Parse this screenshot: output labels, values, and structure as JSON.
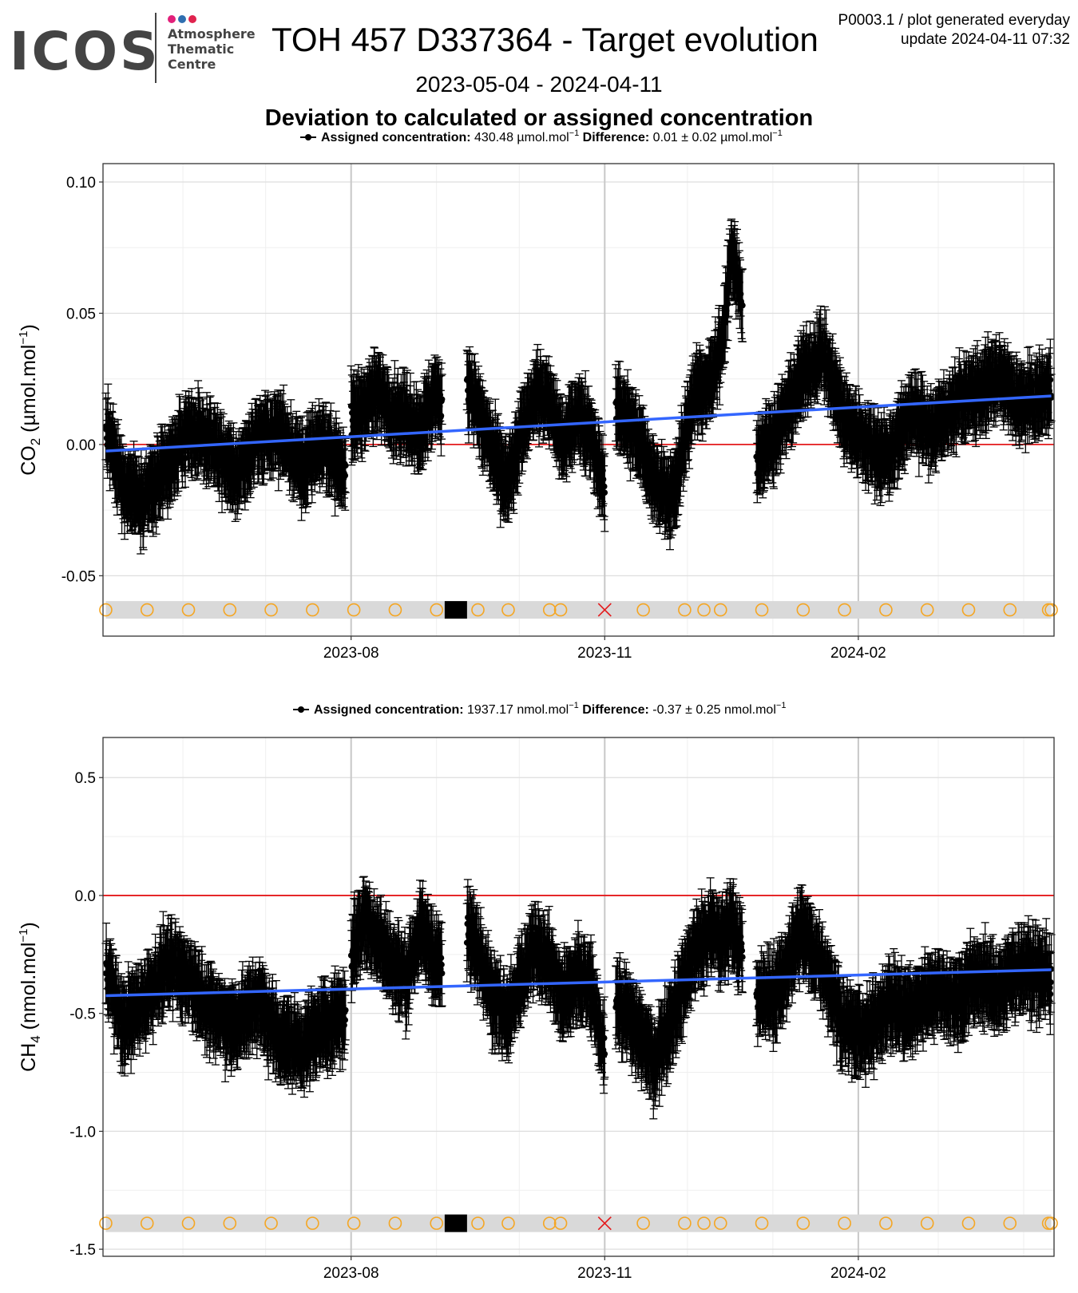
{
  "logo": {
    "text": "ICOS",
    "sub": [
      "Atmosphere",
      "Thematic",
      "Centre"
    ],
    "dot_colors": [
      "#e2207a",
      "#2f6fb0",
      "#e0234e"
    ]
  },
  "header": {
    "title": "TOH 457 D337364 - Target evolution",
    "meta_line1": "P0003.1 / plot generated everyday",
    "meta_line2": "update  2024-04-11 07:32",
    "date_range": "2023-05-04 - 2024-04-11",
    "subtitle": "Deviation to calculated or assigned concentration"
  },
  "colors": {
    "points": "#000000",
    "trend": "#3366ff",
    "zero_line": "#e41a1c",
    "event_circle": "#f5a623",
    "event_cross": "#e41a1c",
    "event_band": "#d9d9d9"
  },
  "chart_data": [
    {
      "type": "scatter",
      "ylabel_main": "CO",
      "ylabel_sub": "2",
      "ylabel_unit": " (µmol.mol",
      "ylabel_sup": "−1",
      "ylabel_close": ")",
      "legend": {
        "assigned_label": "Assigned concentration:",
        "assigned_value": "430.48 µmol.mol",
        "assigned_sup": "−1",
        "diff_label": "Difference:",
        "diff_value": "0.01 ± 0.02 µmol.mol",
        "diff_sup": "−1"
      },
      "xlim": [
        "2023-05-03",
        "2024-04-12"
      ],
      "ylim": [
        -0.073,
        0.107
      ],
      "yticks": [
        0.1,
        0.05,
        0.0,
        -0.05
      ],
      "ytick_labels": [
        "0.10",
        "0.05",
        "0.00",
        "-0.05"
      ],
      "xticks": [
        "2023-08-01",
        "2023-11-01",
        "2024-02-01"
      ],
      "xtick_labels": [
        "2023-08",
        "2023-11",
        "2024-02"
      ],
      "trend": {
        "x": [
          "2023-05-04",
          "2024-04-11"
        ],
        "y": [
          -0.0025,
          0.0185
        ]
      },
      "zero_line": 0.0,
      "event_y": -0.063,
      "error_bar": 0.012,
      "series_segments": [
        {
          "x": [
            "2023-05-04",
            "2023-05-10",
            "2023-05-18",
            "2023-05-26",
            "2023-06-03",
            "2023-06-12",
            "2023-06-20",
            "2023-06-28",
            "2023-07-06",
            "2023-07-14",
            "2023-07-22",
            "2023-07-30"
          ],
          "y": [
            0.005,
            -0.015,
            -0.02,
            -0.01,
            0.005,
            0.0,
            -0.012,
            0.002,
            0.005,
            -0.008,
            0.0,
            -0.01
          ]
        },
        {
          "x": [
            "2023-08-01",
            "2023-08-06",
            "2023-08-11",
            "2023-08-16",
            "2023-08-21",
            "2023-08-26",
            "2023-08-31",
            "2023-09-03"
          ],
          "y": [
            0.008,
            0.015,
            0.02,
            0.012,
            0.01,
            0.005,
            0.018,
            0.015
          ]
        },
        {
          "x": [
            "2023-09-12",
            "2023-09-17",
            "2023-09-22",
            "2023-09-27",
            "2023-10-02",
            "2023-10-07",
            "2023-10-12",
            "2023-10-17",
            "2023-10-22",
            "2023-10-27",
            "2023-11-01"
          ],
          "y": [
            0.025,
            0.01,
            -0.005,
            -0.015,
            0.005,
            0.02,
            0.015,
            0.0,
            0.012,
            0.005,
            -0.018
          ]
        },
        {
          "x": [
            "2023-11-05",
            "2023-11-12",
            "2023-11-19",
            "2023-11-26",
            "2023-12-03",
            "2023-12-10",
            "2023-12-14",
            "2023-12-17",
            "2023-12-21"
          ],
          "y": [
            0.015,
            0.005,
            -0.015,
            -0.02,
            0.018,
            0.025,
            0.04,
            0.075,
            0.055
          ]
        },
        {
          "x": [
            "2023-12-26",
            "2024-01-03",
            "2024-01-11",
            "2024-01-19",
            "2024-01-27",
            "2024-02-04",
            "2024-02-12",
            "2024-02-20",
            "2024-02-28",
            "2024-03-07",
            "2024-03-15",
            "2024-03-23",
            "2024-03-31",
            "2024-04-11"
          ],
          "y": [
            -0.005,
            0.005,
            0.025,
            0.035,
            0.01,
            0.0,
            -0.005,
            0.012,
            0.005,
            0.015,
            0.02,
            0.025,
            0.015,
            0.02
          ]
        }
      ],
      "events": [
        {
          "x": "2023-05-04",
          "kind": "circle"
        },
        {
          "x": "2023-05-19",
          "kind": "circle"
        },
        {
          "x": "2023-06-03",
          "kind": "circle"
        },
        {
          "x": "2023-06-18",
          "kind": "circle"
        },
        {
          "x": "2023-07-03",
          "kind": "circle"
        },
        {
          "x": "2023-07-18",
          "kind": "circle"
        },
        {
          "x": "2023-08-02",
          "kind": "circle"
        },
        {
          "x": "2023-08-17",
          "kind": "circle"
        },
        {
          "x": "2023-09-01",
          "kind": "circle"
        },
        {
          "x": "2023-09-08",
          "kind": "square"
        },
        {
          "x": "2023-09-16",
          "kind": "circle"
        },
        {
          "x": "2023-09-27",
          "kind": "circle"
        },
        {
          "x": "2023-10-12",
          "kind": "circle"
        },
        {
          "x": "2023-10-16",
          "kind": "circle"
        },
        {
          "x": "2023-11-01",
          "kind": "cross"
        },
        {
          "x": "2023-11-15",
          "kind": "circle"
        },
        {
          "x": "2023-11-30",
          "kind": "circle"
        },
        {
          "x": "2023-12-07",
          "kind": "circle"
        },
        {
          "x": "2023-12-13",
          "kind": "circle"
        },
        {
          "x": "2023-12-28",
          "kind": "circle"
        },
        {
          "x": "2024-01-12",
          "kind": "circle"
        },
        {
          "x": "2024-01-27",
          "kind": "circle"
        },
        {
          "x": "2024-02-11",
          "kind": "circle"
        },
        {
          "x": "2024-02-26",
          "kind": "circle"
        },
        {
          "x": "2024-03-12",
          "kind": "circle"
        },
        {
          "x": "2024-03-27",
          "kind": "circle"
        },
        {
          "x": "2024-04-10",
          "kind": "circle"
        },
        {
          "x": "2024-04-11",
          "kind": "circle"
        }
      ]
    },
    {
      "type": "scatter",
      "ylabel_main": "CH",
      "ylabel_sub": "4",
      "ylabel_unit": " (nmol.mol",
      "ylabel_sup": "−1",
      "ylabel_close": ")",
      "legend": {
        "assigned_label": "Assigned concentration:",
        "assigned_value": "1937.17 nmol.mol",
        "assigned_sup": "−1",
        "diff_label": "Difference:",
        "diff_value": "-0.37 ± 0.25 nmol.mol",
        "diff_sup": "−1"
      },
      "xlim": [
        "2023-05-03",
        "2024-04-12"
      ],
      "ylim": [
        -1.53,
        0.67
      ],
      "yticks": [
        0.5,
        0.0,
        -0.5,
        -1.0,
        -1.5
      ],
      "ytick_labels": [
        "0.5",
        "0.0",
        "-0.5",
        "-1.0",
        "-1.5"
      ],
      "xticks": [
        "2023-08-01",
        "2023-11-01",
        "2024-02-01"
      ],
      "xtick_labels": [
        "2023-08",
        "2023-11",
        "2024-02"
      ],
      "trend": {
        "x": [
          "2023-05-04",
          "2024-04-11"
        ],
        "y": [
          -0.425,
          -0.315
        ]
      },
      "zero_line": 0.0,
      "event_y": -1.39,
      "error_bar": 0.14,
      "series_segments": [
        {
          "x": [
            "2023-05-04",
            "2023-05-10",
            "2023-05-18",
            "2023-05-26",
            "2023-06-03",
            "2023-06-12",
            "2023-06-20",
            "2023-06-28",
            "2023-07-06",
            "2023-07-14",
            "2023-07-22",
            "2023-07-30"
          ],
          "y": [
            -0.3,
            -0.55,
            -0.45,
            -0.3,
            -0.35,
            -0.5,
            -0.55,
            -0.45,
            -0.6,
            -0.65,
            -0.55,
            -0.5
          ]
        },
        {
          "x": [
            "2023-08-01",
            "2023-08-06",
            "2023-08-11",
            "2023-08-16",
            "2023-08-21",
            "2023-08-26",
            "2023-08-31",
            "2023-09-03"
          ],
          "y": [
            -0.25,
            -0.1,
            -0.2,
            -0.3,
            -0.35,
            -0.15,
            -0.25,
            -0.3
          ]
        },
        {
          "x": [
            "2023-09-12",
            "2023-09-17",
            "2023-09-22",
            "2023-09-27",
            "2023-10-02",
            "2023-10-07",
            "2023-10-12",
            "2023-10-17",
            "2023-10-22",
            "2023-10-27",
            "2023-11-01"
          ],
          "y": [
            -0.15,
            -0.25,
            -0.45,
            -0.5,
            -0.35,
            -0.2,
            -0.3,
            -0.45,
            -0.35,
            -0.4,
            -0.65
          ]
        },
        {
          "x": [
            "2023-11-05",
            "2023-11-12",
            "2023-11-19",
            "2023-11-26",
            "2023-12-03",
            "2023-12-10",
            "2023-12-14",
            "2023-12-17",
            "2023-12-21"
          ],
          "y": [
            -0.45,
            -0.55,
            -0.7,
            -0.5,
            -0.25,
            -0.15,
            -0.2,
            -0.1,
            -0.25
          ]
        },
        {
          "x": [
            "2023-12-26",
            "2024-01-03",
            "2024-01-11",
            "2024-01-19",
            "2024-01-27",
            "2024-02-04",
            "2024-02-12",
            "2024-02-20",
            "2024-02-28",
            "2024-03-07",
            "2024-03-15",
            "2024-03-23",
            "2024-03-31",
            "2024-04-11"
          ],
          "y": [
            -0.45,
            -0.4,
            -0.15,
            -0.3,
            -0.55,
            -0.6,
            -0.45,
            -0.5,
            -0.4,
            -0.45,
            -0.35,
            -0.4,
            -0.3,
            -0.35
          ]
        }
      ],
      "events": [
        {
          "x": "2023-05-04",
          "kind": "circle"
        },
        {
          "x": "2023-05-19",
          "kind": "circle"
        },
        {
          "x": "2023-06-03",
          "kind": "circle"
        },
        {
          "x": "2023-06-18",
          "kind": "circle"
        },
        {
          "x": "2023-07-03",
          "kind": "circle"
        },
        {
          "x": "2023-07-18",
          "kind": "circle"
        },
        {
          "x": "2023-08-02",
          "kind": "circle"
        },
        {
          "x": "2023-08-17",
          "kind": "circle"
        },
        {
          "x": "2023-09-01",
          "kind": "circle"
        },
        {
          "x": "2023-09-08",
          "kind": "square"
        },
        {
          "x": "2023-09-16",
          "kind": "circle"
        },
        {
          "x": "2023-09-27",
          "kind": "circle"
        },
        {
          "x": "2023-10-12",
          "kind": "circle"
        },
        {
          "x": "2023-10-16",
          "kind": "circle"
        },
        {
          "x": "2023-11-01",
          "kind": "cross"
        },
        {
          "x": "2023-11-15",
          "kind": "circle"
        },
        {
          "x": "2023-11-30",
          "kind": "circle"
        },
        {
          "x": "2023-12-07",
          "kind": "circle"
        },
        {
          "x": "2023-12-13",
          "kind": "circle"
        },
        {
          "x": "2023-12-28",
          "kind": "circle"
        },
        {
          "x": "2024-01-12",
          "kind": "circle"
        },
        {
          "x": "2024-01-27",
          "kind": "circle"
        },
        {
          "x": "2024-02-11",
          "kind": "circle"
        },
        {
          "x": "2024-02-26",
          "kind": "circle"
        },
        {
          "x": "2024-03-12",
          "kind": "circle"
        },
        {
          "x": "2024-03-27",
          "kind": "circle"
        },
        {
          "x": "2024-04-10",
          "kind": "circle"
        },
        {
          "x": "2024-04-11",
          "kind": "circle"
        }
      ]
    }
  ]
}
